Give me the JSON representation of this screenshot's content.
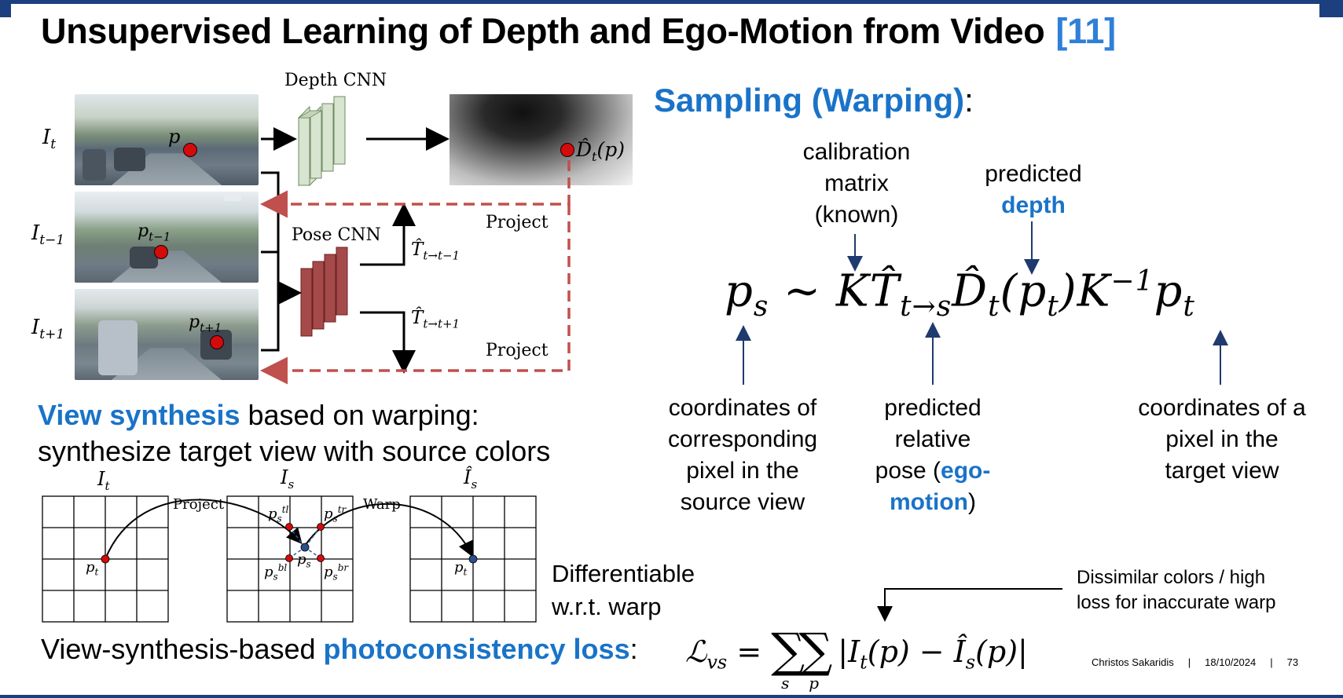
{
  "slide": {
    "title": "Unsupervised Learning of Depth and Ego-Motion from Video",
    "title_ref": "[11]"
  },
  "pipeline": {
    "depth_cnn_label": "Depth CNN",
    "pose_cnn_label": "Pose CNN",
    "frame_labels": [
      "I_t",
      "I_{t-1}",
      "I_{t+1}"
    ],
    "point_labels": [
      "p",
      "p_{t-1}",
      "p_{t+1}"
    ],
    "depth_output_label": "D̂_t(p)",
    "pose_labels": [
      "T̂_{t→t-1}",
      "T̂_{t→t+1}"
    ],
    "project_labels": [
      "Project",
      "Project"
    ]
  },
  "sampling": {
    "heading": "Sampling (Warping)",
    "heading_suffix": ":",
    "calibration_lines": [
      "calibration",
      "matrix",
      "(known)"
    ],
    "predicted_line": "predicted",
    "depth_word": "depth",
    "coords_source_lines": [
      "coordinates of",
      "corresponding",
      "pixel in the",
      "source view"
    ],
    "pose_lines": [
      "predicted",
      "relative"
    ],
    "pose_line3_prefix": "pose (",
    "pose_line3_blue": "ego-",
    "pose_line4_blue": "motion",
    "pose_line4_suffix": ")",
    "coords_target_lines": [
      "coordinates of a",
      "pixel in the",
      "target view"
    ]
  },
  "view_synthesis": {
    "blue_phrase": "View synthesis",
    "rest_line1": " based on warping:",
    "line2": "synthesize target view with source colors",
    "grid_titles": [
      "I_t",
      "I_s",
      "Î_s"
    ],
    "project_label": "Project",
    "warp_label": "Warp",
    "differentiable_lines": [
      "Differentiable",
      "w.r.t. warp"
    ]
  },
  "loss": {
    "prefix": "View-synthesis-based ",
    "blue_phrase": "photoconsistency loss",
    "suffix": ":",
    "note_lines": [
      "Dissimilar colors / high",
      "loss for inaccurate warp"
    ]
  },
  "footer": {
    "author": "Christos Sakaridis",
    "date": "18/10/2024",
    "page": "73"
  },
  "colors": {
    "accent_blue": "#1a73c8",
    "title_ref_blue": "#2f7fd8",
    "bar_navy": "#1c3f80",
    "dashed_red": "#c0504d",
    "point_red": "#d40b0b"
  }
}
